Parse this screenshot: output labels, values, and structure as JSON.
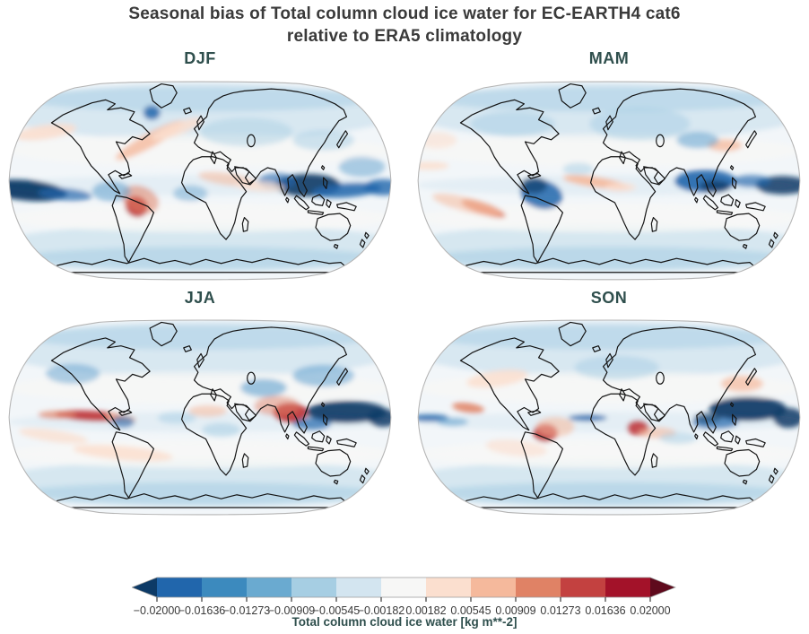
{
  "figure": {
    "title_line1": "Seasonal bias of Total column cloud ice water for EC-EARTH4 cat6",
    "title_line2": "relative to ERA5 climatology"
  },
  "chart_data": {
    "type": "heatmap",
    "variant": "global_filled_contour_bias_maps",
    "projection": "Robinson",
    "variable": "Total column cloud ice water",
    "units": "kg m**-2",
    "model": "EC-EARTH4 cat6",
    "reference": "ERA5 climatology",
    "legend_position": "bottom",
    "grid": false,
    "text_colors": {
      "title": "#3a3a3a",
      "panel_title": "#2f4f4d",
      "tick": "#3a3a3a",
      "cbar_label": "#2f4f4d"
    },
    "ocean_base": "#f2f6f9",
    "coast_color": "#141414",
    "outline_color": "#b5b5b5",
    "palette": {
      "b5": "#0d3a66",
      "b4": "#2166ac",
      "b3": "#5fa0cd",
      "b2": "#a6cee3",
      "b1": "#d3e5f0",
      "w": "#f7f7f6",
      "r1": "#fbdfcf",
      "r2": "#f5b99c",
      "r3": "#e08265",
      "r4": "#c03a3e",
      "r5": "#a31229"
    },
    "colorbar": {
      "label": "Total column cloud ice water [kg m**-2]",
      "extend": "both",
      "boundaries": [
        -0.02,
        -0.016364,
        -0.012727,
        -0.009091,
        -0.005455,
        -0.001818,
        0.001818,
        0.005455,
        0.009091,
        0.012727,
        0.016364,
        0.02
      ],
      "tick_labels": [
        "−0.02000",
        "−0.01636",
        "−0.01273",
        "−0.00909",
        "−0.00545",
        "−0.00182",
        "0.00182",
        "0.00545",
        "0.00909",
        "0.01273",
        "0.01636",
        "0.02000"
      ],
      "segment_colors": [
        "#2166ac",
        "#3c8abe",
        "#6aaad0",
        "#a6cee3",
        "#d3e5f0",
        "#f7f7f6",
        "#fbdfcf",
        "#f5b99c",
        "#e08265",
        "#c34140",
        "#a31229"
      ],
      "under_color": "#0d3a66",
      "over_color": "#5f0a1d"
    },
    "base_features": [
      [
        0.5,
        0.16,
        0.52,
        0.14,
        0,
        "b1",
        0.85
      ],
      [
        0.5,
        0.1,
        0.45,
        0.06,
        0,
        "b2",
        0.5
      ],
      [
        0.5,
        0.82,
        0.54,
        0.11,
        0,
        "b1",
        0.9
      ],
      [
        0.5,
        0.88,
        0.48,
        0.06,
        0,
        "b2",
        0.55
      ],
      [
        0.5,
        0.35,
        0.5,
        0.08,
        0,
        "w",
        0.75
      ],
      [
        0.5,
        0.68,
        0.5,
        0.07,
        0,
        "w",
        0.8
      ],
      [
        0.5,
        0.52,
        0.5,
        0.05,
        0,
        "b1",
        0.45
      ]
    ],
    "panels": [
      {
        "label": "DJF",
        "features": [
          [
            0.05,
            0.545,
            0.105,
            0.05,
            5,
            "b5",
            0.95
          ],
          [
            0.15,
            0.565,
            0.07,
            0.03,
            4,
            "b4",
            0.7
          ],
          [
            0.78,
            0.52,
            0.085,
            0.055,
            0,
            "b5",
            0.9
          ],
          [
            0.88,
            0.545,
            0.09,
            0.035,
            -4,
            "b4",
            0.85
          ],
          [
            0.975,
            0.53,
            0.05,
            0.04,
            0,
            "b4",
            0.8
          ],
          [
            0.7,
            0.5,
            0.05,
            0.04,
            0,
            "b4",
            0.6
          ],
          [
            0.335,
            0.625,
            0.03,
            0.05,
            25,
            "r4",
            0.95
          ],
          [
            0.345,
            0.59,
            0.05,
            0.065,
            20,
            "r3",
            0.55
          ],
          [
            0.37,
            0.3,
            0.1,
            0.035,
            -28,
            "r2",
            0.8
          ],
          [
            0.44,
            0.245,
            0.07,
            0.03,
            -20,
            "r1",
            0.85
          ],
          [
            0.1,
            0.26,
            0.08,
            0.035,
            -8,
            "r1",
            0.9
          ],
          [
            0.57,
            0.49,
            0.075,
            0.03,
            8,
            "r2",
            0.55
          ],
          [
            0.655,
            0.525,
            0.065,
            0.025,
            4,
            "r1",
            0.75
          ],
          [
            0.375,
            0.165,
            0.022,
            0.035,
            0,
            "b4",
            0.85
          ],
          [
            0.27,
            0.55,
            0.05,
            0.05,
            0,
            "b3",
            0.55
          ],
          [
            0.475,
            0.56,
            0.045,
            0.04,
            0,
            "b3",
            0.45
          ],
          [
            0.62,
            0.26,
            0.12,
            0.07,
            0,
            "b2",
            0.45
          ],
          [
            0.82,
            0.3,
            0.08,
            0.05,
            0,
            "b2",
            0.5
          ],
          [
            0.92,
            0.43,
            0.06,
            0.05,
            0,
            "b3",
            0.5
          ]
        ]
      },
      {
        "label": "MAM",
        "features": [
          [
            0.325,
            0.565,
            0.055,
            0.07,
            12,
            "b4",
            0.85
          ],
          [
            0.305,
            0.52,
            0.035,
            0.04,
            0,
            "b5",
            0.65
          ],
          [
            0.75,
            0.5,
            0.08,
            0.055,
            0,
            "b4",
            0.9
          ],
          [
            0.775,
            0.525,
            0.04,
            0.03,
            0,
            "b5",
            0.75
          ],
          [
            0.95,
            0.52,
            0.07,
            0.045,
            0,
            "b5",
            0.85
          ],
          [
            0.87,
            0.5,
            0.05,
            0.03,
            0,
            "b4",
            0.65
          ],
          [
            0.465,
            0.505,
            0.085,
            0.025,
            8,
            "r2",
            0.9
          ],
          [
            0.53,
            0.53,
            0.04,
            0.02,
            0,
            "r1",
            0.8
          ],
          [
            0.175,
            0.635,
            0.06,
            0.028,
            18,
            "r3",
            0.85
          ],
          [
            0.13,
            0.615,
            0.09,
            0.035,
            14,
            "r2",
            0.55
          ],
          [
            0.8,
            0.325,
            0.045,
            0.03,
            0,
            "r2",
            0.75
          ],
          [
            0.035,
            0.425,
            0.05,
            0.02,
            0,
            "r1",
            0.85
          ],
          [
            0.58,
            0.22,
            0.13,
            0.08,
            0,
            "b2",
            0.5
          ],
          [
            0.73,
            0.3,
            0.055,
            0.04,
            0,
            "b3",
            0.55
          ],
          [
            0.25,
            0.22,
            0.11,
            0.06,
            0,
            "b2",
            0.5
          ],
          [
            0.055,
            0.3,
            0.05,
            0.04,
            0,
            "r1",
            0.6
          ],
          [
            0.42,
            0.44,
            0.04,
            0.03,
            0,
            "b2",
            0.5
          ]
        ]
      },
      {
        "label": "JJA",
        "features": [
          [
            0.215,
            0.49,
            0.09,
            0.026,
            3,
            "r4",
            0.95
          ],
          [
            0.13,
            0.485,
            0.05,
            0.02,
            0,
            "r3",
            0.7
          ],
          [
            0.295,
            0.5,
            0.04,
            0.02,
            8,
            "r2",
            0.8
          ],
          [
            0.735,
            0.475,
            0.045,
            0.05,
            0,
            "r4",
            0.95
          ],
          [
            0.7,
            0.44,
            0.06,
            0.05,
            0,
            "r3",
            0.5
          ],
          [
            0.88,
            0.47,
            0.105,
            0.055,
            0,
            "b5",
            0.92
          ],
          [
            0.975,
            0.5,
            0.04,
            0.045,
            0,
            "b5",
            0.85
          ],
          [
            0.79,
            0.53,
            0.05,
            0.03,
            0,
            "b4",
            0.7
          ],
          [
            0.665,
            0.35,
            0.06,
            0.045,
            0,
            "b3",
            0.6
          ],
          [
            0.82,
            0.29,
            0.08,
            0.055,
            0,
            "b3",
            0.55
          ],
          [
            0.17,
            0.28,
            0.07,
            0.05,
            0,
            "b3",
            0.5
          ],
          [
            0.3,
            0.675,
            0.13,
            0.035,
            5,
            "r1",
            0.85
          ],
          [
            0.12,
            0.59,
            0.09,
            0.03,
            8,
            "r1",
            0.75
          ],
          [
            0.52,
            0.465,
            0.05,
            0.03,
            0,
            "r2",
            0.55
          ],
          [
            0.3,
            0.52,
            0.03,
            0.03,
            0,
            "b4",
            0.6
          ],
          [
            0.555,
            0.56,
            0.05,
            0.035,
            0,
            "b2",
            0.55
          ],
          [
            0.44,
            0.5,
            0.05,
            0.03,
            0,
            "b2",
            0.5
          ]
        ]
      },
      {
        "label": "SON",
        "features": [
          [
            0.335,
            0.575,
            0.032,
            0.045,
            0,
            "r4",
            0.95
          ],
          [
            0.36,
            0.545,
            0.05,
            0.05,
            0,
            "r2",
            0.55
          ],
          [
            0.575,
            0.55,
            0.028,
            0.038,
            0,
            "r4",
            0.9
          ],
          [
            0.86,
            0.455,
            0.1,
            0.06,
            0,
            "b5",
            0.93
          ],
          [
            0.965,
            0.5,
            0.04,
            0.05,
            0,
            "b5",
            0.85
          ],
          [
            0.775,
            0.525,
            0.06,
            0.03,
            0,
            "b4",
            0.7
          ],
          [
            0.445,
            0.5,
            0.05,
            0.016,
            0,
            "b4",
            0.85
          ],
          [
            0.035,
            0.5,
            0.05,
            0.018,
            0,
            "b4",
            0.85
          ],
          [
            0.135,
            0.45,
            0.042,
            0.025,
            8,
            "r3",
            0.85
          ],
          [
            0.21,
            0.305,
            0.08,
            0.04,
            -8,
            "r1",
            0.85
          ],
          [
            0.845,
            0.33,
            0.055,
            0.04,
            0,
            "r2",
            0.7
          ],
          [
            0.625,
            0.575,
            0.05,
            0.028,
            0,
            "r2",
            0.6
          ],
          [
            0.52,
            0.25,
            0.11,
            0.06,
            0,
            "b2",
            0.5
          ],
          [
            0.26,
            0.65,
            0.08,
            0.04,
            6,
            "r1",
            0.65
          ],
          [
            0.755,
            0.5,
            0.035,
            0.025,
            0,
            "b5",
            0.6
          ],
          [
            0.095,
            0.52,
            0.04,
            0.02,
            0,
            "b3",
            0.6
          ],
          [
            0.68,
            0.6,
            0.05,
            0.03,
            0,
            "b2",
            0.5
          ]
        ]
      }
    ]
  }
}
